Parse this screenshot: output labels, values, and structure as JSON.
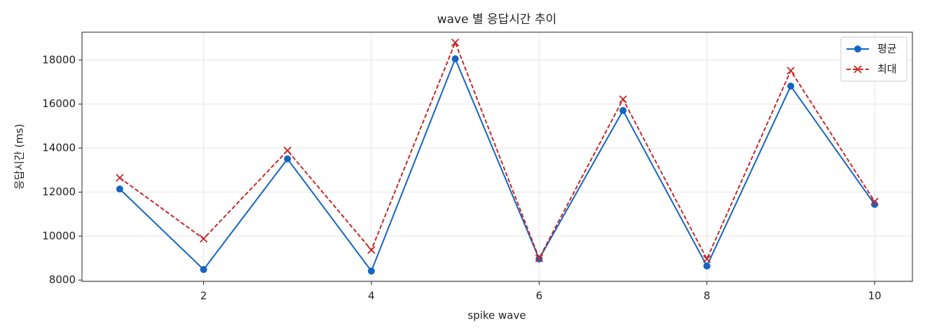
{
  "chart_data": {
    "type": "line",
    "title": "wave 별 응답시간 추이",
    "x_label": "spike wave",
    "y_label": "응답시간 (ms)",
    "x": [
      1,
      2,
      3,
      4,
      5,
      6,
      7,
      8,
      9,
      10
    ],
    "series": [
      {
        "name": "평균",
        "color": "#1565c0",
        "marker": "circle",
        "dash": "solid",
        "values": [
          12140,
          8480,
          13510,
          8410,
          18060,
          8960,
          15710,
          8640,
          16820,
          11440
        ]
      },
      {
        "name": "최대",
        "color": "#c62828",
        "marker": "x",
        "dash": "dashed",
        "values": [
          12650,
          9880,
          13890,
          9370,
          18800,
          8990,
          16220,
          8960,
          17520,
          11570
        ]
      }
    ],
    "xlim": [
      0.55,
      10.45
    ],
    "xticks": [
      2,
      4,
      6,
      8,
      10
    ],
    "ylim": [
      7940,
      19270
    ],
    "yticks": [
      8000,
      10000,
      12000,
      14000,
      16000,
      18000
    ],
    "grid": true,
    "legend": "upper right"
  }
}
